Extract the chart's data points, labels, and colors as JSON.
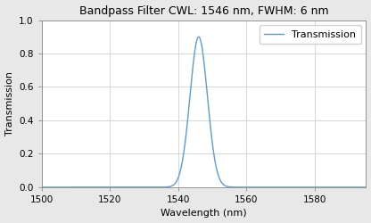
{
  "title": "Bandpass Filter CWL: 1546 nm, FWHM: 6 nm",
  "xlabel": "Wavelength (nm)",
  "ylabel": "Transmission",
  "cwl": 1546,
  "fwhm": 6,
  "peak_transmission": 0.9,
  "xmin": 1500,
  "xmax": 1595,
  "ymin": 0.0,
  "ymax": 1.0,
  "xticks": [
    1500,
    1520,
    1540,
    1560,
    1580
  ],
  "yticks": [
    0.0,
    0.2,
    0.4,
    0.6,
    0.8,
    1.0
  ],
  "line_color": "#5b9bd5",
  "legend_label": "Transmission",
  "figure_facecolor": "#e8e8e8",
  "axes_facecolor": "#ffffff",
  "grid_color": "#d0d0d0",
  "spine_color": "#888888",
  "title_fontsize": 9,
  "axis_fontsize": 8,
  "tick_fontsize": 7.5,
  "legend_fontsize": 8,
  "line_width": 1.0
}
